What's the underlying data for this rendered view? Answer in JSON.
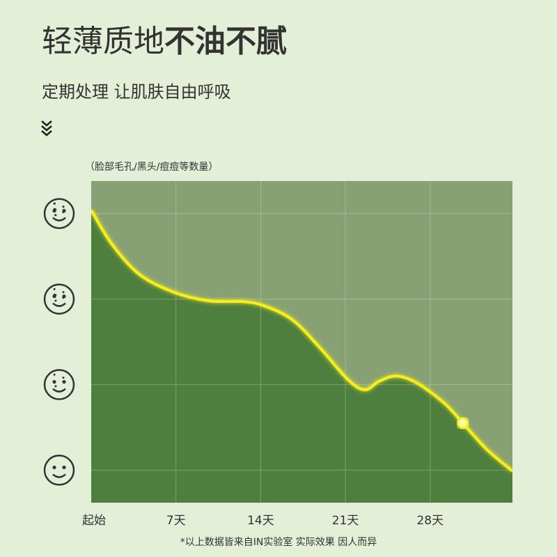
{
  "chart_data": {
    "type": "area",
    "title_light": "轻薄质地",
    "title_bold": "不油不腻",
    "subtitle": "定期处理 让肌肤自由呼吸",
    "y_label": "（脸部毛孔/黑头/痘痘等数量）",
    "footnote": "*以上数据皆来自IN实验室 实际效果 因人而异",
    "x": [
      0,
      1.67,
      3.97,
      6.84,
      9.7,
      12.6,
      14.3,
      16.6,
      18.9,
      21.2,
      22.6,
      23.8,
      25.2,
      26.9,
      29.2,
      30.7,
      32.7,
      34.8
    ],
    "values": [
      3.04,
      2.65,
      2.29,
      2.08,
      1.98,
      1.97,
      1.92,
      1.76,
      1.43,
      1.06,
      0.94,
      1.04,
      1.1,
      1.02,
      0.78,
      0.55,
      0.24,
      -0.01
    ],
    "highlight": {
      "x": 30.7,
      "y": 0.55
    },
    "xlim": [
      0,
      34.8
    ],
    "ylim": [
      -0.38,
      3.38
    ],
    "xticks": [
      {
        "value": 0,
        "label": "起始"
      },
      {
        "value": 7,
        "label": "7天"
      },
      {
        "value": 14,
        "label": "14天"
      },
      {
        "value": 21,
        "label": "21天"
      },
      {
        "value": 28,
        "label": "28天"
      }
    ],
    "yticks": [
      0,
      1,
      2,
      3
    ],
    "grid": true,
    "color": "#f7ef1c",
    "fill": "#4f7f3f",
    "background": "#87a174"
  }
}
